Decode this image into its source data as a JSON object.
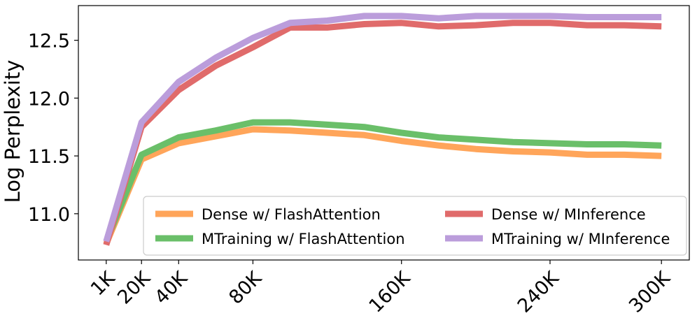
{
  "chart_data": {
    "type": "line",
    "title": "",
    "xlabel": "",
    "ylabel": "Log Perplexity",
    "x": [
      1,
      20,
      40,
      60,
      80,
      100,
      120,
      140,
      160,
      180,
      200,
      220,
      240,
      260,
      280,
      300
    ],
    "xticks": [
      1,
      20,
      40,
      80,
      160,
      240,
      300
    ],
    "xtick_labels": [
      "1K",
      "20K",
      "40K",
      "80K",
      "160K",
      "240K",
      "300K"
    ],
    "xlim": [
      -14,
      315
    ],
    "yticks": [
      11.0,
      11.5,
      12.0,
      12.5
    ],
    "ytick_labels": [
      "11.0",
      "11.5",
      "12.0",
      "12.5"
    ],
    "ylim": [
      10.6,
      12.8
    ],
    "grid": false,
    "legend_position": "lower-right",
    "legend_columns": 2,
    "series": [
      {
        "name": "Dense w/ FlashAttention",
        "color": "#ffa55a",
        "values": [
          10.74,
          11.47,
          11.61,
          11.67,
          11.73,
          11.72,
          11.7,
          11.68,
          11.63,
          11.59,
          11.56,
          11.54,
          11.53,
          11.51,
          11.51,
          11.5
        ]
      },
      {
        "name": "MTraining w/ FlashAttention",
        "color": "#6abf69",
        "values": [
          10.76,
          11.51,
          11.66,
          11.72,
          11.79,
          11.79,
          11.77,
          11.75,
          11.7,
          11.66,
          11.64,
          11.62,
          11.61,
          11.6,
          11.6,
          11.59
        ]
      },
      {
        "name": "Dense w/ MInference",
        "color": "#e06b6b",
        "values": [
          10.73,
          11.75,
          12.07,
          12.28,
          12.44,
          12.61,
          12.61,
          12.64,
          12.65,
          12.62,
          12.63,
          12.65,
          12.65,
          12.63,
          12.63,
          12.62
        ]
      },
      {
        "name": "MTraining w/ MInference",
        "color": "#bb9ddb",
        "values": [
          10.76,
          11.79,
          12.14,
          12.35,
          12.52,
          12.65,
          12.67,
          12.71,
          12.71,
          12.69,
          12.71,
          12.71,
          12.71,
          12.7,
          12.7,
          12.7
        ]
      }
    ]
  }
}
